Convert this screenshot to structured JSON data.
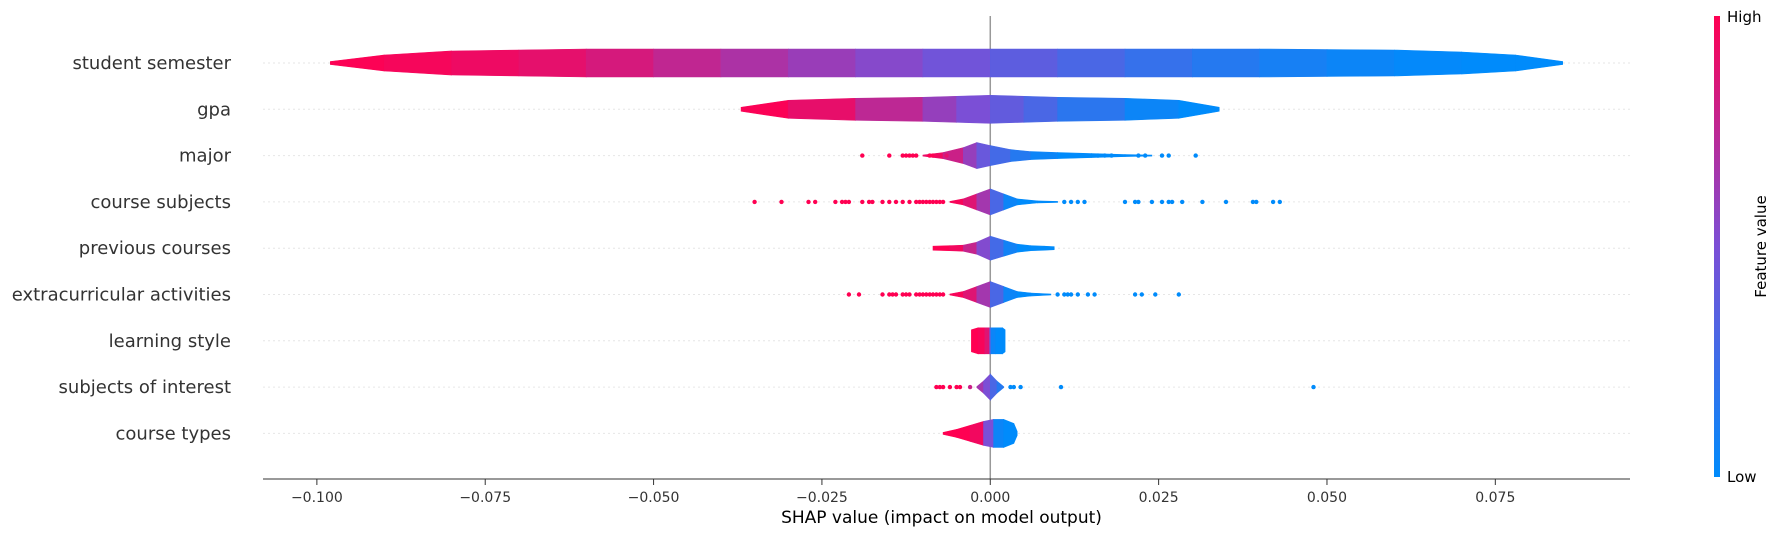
{
  "chart_data": {
    "type": "scatter",
    "subtype": "shap-violin-summary",
    "title": "",
    "xlabel": "SHAP value (impact on model output)",
    "xlim": [
      -0.108,
      0.095
    ],
    "x_ticks": [
      -0.1,
      -0.075,
      -0.05,
      -0.025,
      0.0,
      0.025,
      0.05,
      0.075
    ],
    "x_tick_labels": [
      "−0.100",
      "−0.075",
      "−0.050",
      "−0.025",
      "0.000",
      "0.025",
      "0.050",
      "0.075"
    ],
    "colorbar": {
      "label": "Feature value",
      "high_label": "High",
      "low_label": "Low",
      "high_color": "#ff0d57",
      "mid_color": "#7b4fd6",
      "low_color": "#1e88e5"
    },
    "features": [
      {
        "name": "student semester",
        "range": [
          -0.098,
          0.085
        ],
        "violin": [
          [
            -0.098,
            1.5,
            0.0
          ],
          [
            -0.09,
            8,
            0.02
          ],
          [
            -0.08,
            12,
            0.05
          ],
          [
            -0.07,
            13,
            0.08
          ],
          [
            -0.06,
            14,
            0.12
          ],
          [
            -0.05,
            14,
            0.2
          ],
          [
            -0.04,
            14,
            0.28
          ],
          [
            -0.03,
            14,
            0.35
          ],
          [
            -0.02,
            14,
            0.42
          ],
          [
            -0.01,
            14,
            0.5
          ],
          [
            0.0,
            14,
            0.58
          ],
          [
            0.01,
            14,
            0.66
          ],
          [
            0.02,
            14,
            0.74
          ],
          [
            0.03,
            14,
            0.82
          ],
          [
            0.04,
            14,
            0.88
          ],
          [
            0.05,
            13.5,
            0.93
          ],
          [
            0.06,
            13,
            0.97
          ],
          [
            0.07,
            11,
            1.0
          ],
          [
            0.078,
            8,
            1.0
          ],
          [
            0.085,
            1.5,
            1.0
          ]
        ],
        "points": []
      },
      {
        "name": "gpa",
        "range": [
          -0.037,
          0.034
        ],
        "violin": [
          [
            -0.037,
            2,
            0.0
          ],
          [
            -0.03,
            9,
            0.03
          ],
          [
            -0.02,
            11,
            0.15
          ],
          [
            -0.01,
            12,
            0.35
          ],
          [
            -0.005,
            13,
            0.45
          ],
          [
            0.0,
            14,
            0.55
          ],
          [
            0.005,
            13,
            0.65
          ],
          [
            0.01,
            12,
            0.75
          ],
          [
            0.02,
            11,
            0.9
          ],
          [
            0.028,
            9,
            1.0
          ],
          [
            0.034,
            2,
            1.0
          ]
        ],
        "points": []
      },
      {
        "name": "major",
        "range": [
          -0.019,
          0.03
        ],
        "violin": [
          [
            -0.01,
            0.5,
            0.05
          ],
          [
            -0.007,
            3,
            0.1
          ],
          [
            -0.004,
            8,
            0.3
          ],
          [
            -0.002,
            13,
            0.5
          ],
          [
            0.0,
            10,
            0.65
          ],
          [
            0.003,
            6,
            0.8
          ],
          [
            0.006,
            4,
            0.9
          ],
          [
            0.01,
            3,
            1.0
          ],
          [
            0.015,
            2,
            1.0
          ],
          [
            0.02,
            1,
            1.0
          ],
          [
            0.024,
            0.5,
            1.0
          ]
        ],
        "points": [
          [
            -0.019,
            0.0
          ],
          [
            -0.015,
            0.0
          ],
          [
            -0.013,
            0.0
          ],
          [
            -0.0125,
            0.0
          ],
          [
            -0.012,
            0.0
          ],
          [
            -0.0115,
            0.0
          ],
          [
            -0.011,
            0.0
          ],
          [
            -0.009,
            0.0
          ],
          [
            -0.0085,
            0.0
          ],
          [
            -0.008,
            0.05
          ],
          [
            -0.0075,
            0.05
          ],
          [
            -0.0065,
            0.1
          ],
          [
            0.022,
            1.0
          ],
          [
            0.023,
            1.0
          ],
          [
            0.0255,
            1.0
          ],
          [
            0.0265,
            1.0
          ],
          [
            0.0305,
            1.0
          ],
          [
            0.016,
            1.0
          ],
          [
            0.017,
            1.0
          ],
          [
            0.018,
            1.0
          ]
        ]
      },
      {
        "name": "course subjects",
        "range": [
          -0.035,
          0.043
        ],
        "violin": [
          [
            -0.006,
            0.5,
            0.0
          ],
          [
            -0.004,
            3,
            0.05
          ],
          [
            -0.002,
            8,
            0.2
          ],
          [
            0.0,
            13,
            0.5
          ],
          [
            0.002,
            8,
            0.9
          ],
          [
            0.004,
            3,
            1.0
          ],
          [
            0.007,
            1,
            1.0
          ],
          [
            0.01,
            0.5,
            1.0
          ]
        ],
        "points": [
          [
            -0.035,
            0.0
          ],
          [
            -0.031,
            0.0
          ],
          [
            -0.027,
            0.0
          ],
          [
            -0.026,
            0.0
          ],
          [
            -0.023,
            0.0
          ],
          [
            -0.022,
            0.0
          ],
          [
            -0.0215,
            0.0
          ],
          [
            -0.021,
            0.0
          ],
          [
            -0.019,
            0.0
          ],
          [
            -0.018,
            0.0
          ],
          [
            -0.0175,
            0.0
          ],
          [
            -0.016,
            0.0
          ],
          [
            -0.015,
            0.0
          ],
          [
            -0.014,
            0.0
          ],
          [
            -0.013,
            0.0
          ],
          [
            -0.012,
            0.0
          ],
          [
            -0.011,
            0.0
          ],
          [
            -0.0105,
            0.0
          ],
          [
            -0.01,
            0.0
          ],
          [
            -0.0095,
            0.0
          ],
          [
            -0.009,
            0.0
          ],
          [
            -0.0085,
            0.0
          ],
          [
            -0.008,
            0.0
          ],
          [
            -0.0075,
            0.0
          ],
          [
            -0.007,
            0.0
          ],
          [
            0.011,
            1.0
          ],
          [
            0.012,
            1.0
          ],
          [
            0.013,
            1.0
          ],
          [
            0.014,
            1.0
          ],
          [
            0.02,
            1.0
          ],
          [
            0.0215,
            1.0
          ],
          [
            0.022,
            1.0
          ],
          [
            0.024,
            1.0
          ],
          [
            0.0255,
            1.0
          ],
          [
            0.0265,
            1.0
          ],
          [
            0.027,
            1.0
          ],
          [
            0.0285,
            1.0
          ],
          [
            0.0315,
            1.0
          ],
          [
            0.035,
            1.0
          ],
          [
            0.039,
            1.0
          ],
          [
            0.0395,
            1.0
          ],
          [
            0.042,
            1.0
          ],
          [
            0.043,
            1.0
          ]
        ]
      },
      {
        "name": "previous courses",
        "range": [
          -0.0085,
          0.0095
        ],
        "violin": [
          [
            -0.0085,
            2,
            0.0
          ],
          [
            -0.006,
            2.5,
            0.0
          ],
          [
            -0.004,
            3,
            0.1
          ],
          [
            -0.002,
            6,
            0.35
          ],
          [
            0.0,
            12,
            0.6
          ],
          [
            0.002,
            8,
            0.85
          ],
          [
            0.004,
            4,
            1.0
          ],
          [
            0.006,
            2.5,
            1.0
          ],
          [
            0.008,
            2,
            1.0
          ],
          [
            0.0095,
            1.5,
            1.0
          ]
        ],
        "points": []
      },
      {
        "name": "extracurricular activities",
        "range": [
          -0.021,
          0.028
        ],
        "violin": [
          [
            -0.006,
            0.5,
            0.0
          ],
          [
            -0.004,
            3,
            0.05
          ],
          [
            -0.002,
            8,
            0.2
          ],
          [
            0.0,
            13,
            0.5
          ],
          [
            0.002,
            8,
            0.9
          ],
          [
            0.004,
            3,
            1.0
          ],
          [
            0.006,
            1.5,
            1.0
          ],
          [
            0.009,
            0.5,
            1.0
          ]
        ],
        "points": [
          [
            -0.021,
            0.0
          ],
          [
            -0.0195,
            0.0
          ],
          [
            -0.016,
            0.0
          ],
          [
            -0.015,
            0.0
          ],
          [
            -0.0145,
            0.0
          ],
          [
            -0.014,
            0.0
          ],
          [
            -0.013,
            0.0
          ],
          [
            -0.0125,
            0.0
          ],
          [
            -0.012,
            0.0
          ],
          [
            -0.011,
            0.0
          ],
          [
            -0.0105,
            0.0
          ],
          [
            -0.01,
            0.0
          ],
          [
            -0.0095,
            0.0
          ],
          [
            -0.009,
            0.0
          ],
          [
            -0.0085,
            0.0
          ],
          [
            -0.008,
            0.0
          ],
          [
            -0.0075,
            0.0
          ],
          [
            -0.007,
            0.0
          ],
          [
            0.01,
            1.0
          ],
          [
            0.011,
            1.0
          ],
          [
            0.0115,
            1.0
          ],
          [
            0.012,
            1.0
          ],
          [
            0.013,
            1.0
          ],
          [
            0.0145,
            1.0
          ],
          [
            0.0155,
            1.0
          ],
          [
            0.0215,
            1.0
          ],
          [
            0.0225,
            1.0
          ],
          [
            0.0245,
            1.0
          ],
          [
            0.028,
            1.0
          ]
        ]
      },
      {
        "name": "learning style",
        "range": [
          -0.0028,
          0.0022
        ],
        "violin": [
          [
            -0.0028,
            11,
            0.0
          ],
          [
            -0.0018,
            13,
            0.0
          ],
          [
            -0.0008,
            13,
            0.05
          ],
          [
            -0.0001,
            13,
            0.2
          ],
          [
            0.0001,
            13,
            0.9
          ],
          [
            0.0008,
            13,
            1.0
          ],
          [
            0.0018,
            13,
            1.0
          ],
          [
            0.0022,
            11,
            1.0
          ]
        ],
        "points": []
      },
      {
        "name": "subjects of interest",
        "range": [
          -0.008,
          0.048
        ],
        "violin": [
          [
            -0.002,
            0.5,
            0.3
          ],
          [
            -0.001,
            6,
            0.4
          ],
          [
            0.0,
            13,
            0.6
          ],
          [
            0.001,
            6,
            0.8
          ],
          [
            0.002,
            0.5,
            0.9
          ]
        ],
        "points": [
          [
            -0.008,
            0.0
          ],
          [
            -0.0075,
            0.0
          ],
          [
            -0.007,
            0.0
          ],
          [
            -0.006,
            0.0
          ],
          [
            -0.005,
            0.0
          ],
          [
            -0.0045,
            0.0
          ],
          [
            -0.003,
            0.2
          ],
          [
            0.003,
            1.0
          ],
          [
            0.0035,
            1.0
          ],
          [
            0.0045,
            1.0
          ],
          [
            0.0105,
            1.0
          ],
          [
            0.048,
            1.0
          ]
        ]
      },
      {
        "name": "course types",
        "range": [
          -0.007,
          0.004
        ],
        "violin": [
          [
            -0.007,
            1,
            0.0
          ],
          [
            -0.005,
            4,
            0.0
          ],
          [
            -0.003,
            8,
            0.0
          ],
          [
            -0.001,
            12,
            0.1
          ],
          [
            0.0005,
            14,
            0.9
          ],
          [
            0.002,
            14,
            1.0
          ],
          [
            0.0035,
            10,
            1.0
          ],
          [
            0.004,
            2,
            1.0
          ]
        ],
        "points": []
      }
    ]
  }
}
